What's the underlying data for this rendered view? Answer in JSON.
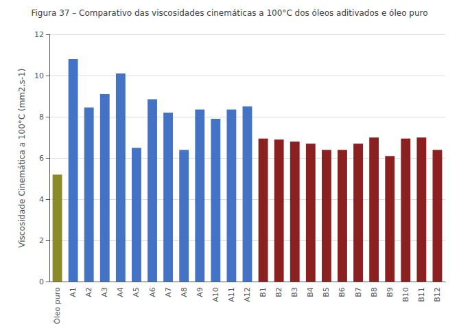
{
  "chart_data": {
    "type": "bar",
    "title": "Figura 37 – Comparativo das viscosidades cinemáticas a 100°C dos óleos aditivados e óleo puro",
    "ylabel": "Viscosidade Cinemática a 100°C (mm2.s-1)",
    "categories": [
      "Óleo puro",
      "A1",
      "A2",
      "A3",
      "A4",
      "A5",
      "A6",
      "A7",
      "A8",
      "A9",
      "A10",
      "A11",
      "A12",
      "B1",
      "B2",
      "B3",
      "B4",
      "B5",
      "B6",
      "B7",
      "B8",
      "B9",
      "B10",
      "B11",
      "B12"
    ],
    "values": [
      5.2,
      10.8,
      8.45,
      9.1,
      10.1,
      6.5,
      8.85,
      8.2,
      6.4,
      8.35,
      7.9,
      8.35,
      8.5,
      6.95,
      6.9,
      6.8,
      6.7,
      6.4,
      6.4,
      6.7,
      7.0,
      6.1,
      6.95,
      7.0,
      6.4
    ],
    "colors": [
      "#8B8B2A",
      "#4472C4",
      "#4472C4",
      "#4472C4",
      "#4472C4",
      "#4472C4",
      "#4472C4",
      "#4472C4",
      "#4472C4",
      "#4472C4",
      "#4472C4",
      "#4472C4",
      "#4472C4",
      "#8B2020",
      "#8B2020",
      "#8B2020",
      "#8B2020",
      "#8B2020",
      "#8B2020",
      "#8B2020",
      "#8B2020",
      "#8B2020",
      "#8B2020",
      "#8B2020",
      "#8B2020"
    ],
    "ylim": [
      0,
      12
    ],
    "yticks": [
      0,
      2,
      4,
      6,
      8,
      10,
      12
    ],
    "grid": true
  }
}
